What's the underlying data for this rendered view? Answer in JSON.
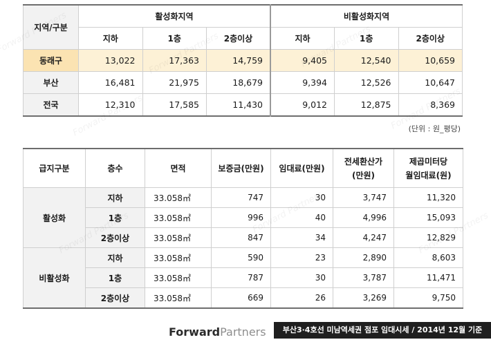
{
  "table1": {
    "corner_label": "지역/구분",
    "group_active": "활성화지역",
    "group_inactive": "비활성화지역",
    "sub_headers": [
      "지하",
      "1층",
      "2층이상",
      "지하",
      "1층",
      "2층이상"
    ],
    "rows": [
      {
        "region": "동래구",
        "values": [
          "13,022",
          "17,363",
          "14,759",
          "9,405",
          "12,540",
          "10,659"
        ]
      },
      {
        "region": "부산",
        "values": [
          "16,481",
          "21,975",
          "18,679",
          "9,394",
          "12,526",
          "10,647"
        ]
      },
      {
        "region": "전국",
        "values": [
          "12,310",
          "17,585",
          "11,430",
          "9,012",
          "12,875",
          "8,369"
        ]
      }
    ]
  },
  "unit_note": "(단위 : 원_평당)",
  "table2": {
    "headers": [
      "급지구분",
      "층수",
      "면적",
      "보증금(만원)",
      "임대료(만원)",
      "전세환산가\n(만원)",
      "제곱미터당\n월임대료(원)"
    ],
    "groups": [
      {
        "name": "활성화",
        "rows": [
          {
            "floor": "지하",
            "area": "33.058㎡",
            "deposit": "747",
            "rent": "30",
            "jeonse": "3,747",
            "per_m2": "11,320"
          },
          {
            "floor": "1층",
            "area": "33.058㎡",
            "deposit": "996",
            "rent": "40",
            "jeonse": "4,996",
            "per_m2": "15,093"
          },
          {
            "floor": "2층이상",
            "area": "33.058㎡",
            "deposit": "847",
            "rent": "34",
            "jeonse": "4,247",
            "per_m2": "12,829"
          }
        ]
      },
      {
        "name": "비활성화",
        "rows": [
          {
            "floor": "지하",
            "area": "33.058㎡",
            "deposit": "590",
            "rent": "23",
            "jeonse": "2,890",
            "per_m2": "8,603"
          },
          {
            "floor": "1층",
            "area": "33.058㎡",
            "deposit": "787",
            "rent": "30",
            "jeonse": "3,787",
            "per_m2": "11,471"
          },
          {
            "floor": "2층이상",
            "area": "33.058㎡",
            "deposit": "669",
            "rent": "26",
            "jeonse": "3,269",
            "per_m2": "9,750"
          }
        ]
      }
    ]
  },
  "footer": {
    "logo_bold": "Forward",
    "logo_light": "Partners",
    "caption": "부산3·4호선 미남역세권 점포 임대시세 / 2014년 12월 기준"
  },
  "watermark_text": "Forward Partners",
  "colors": {
    "highlight_row": "#fdf1d6",
    "label_bg": "#f2f2f2",
    "caption_bg": "#1f1f1f"
  }
}
